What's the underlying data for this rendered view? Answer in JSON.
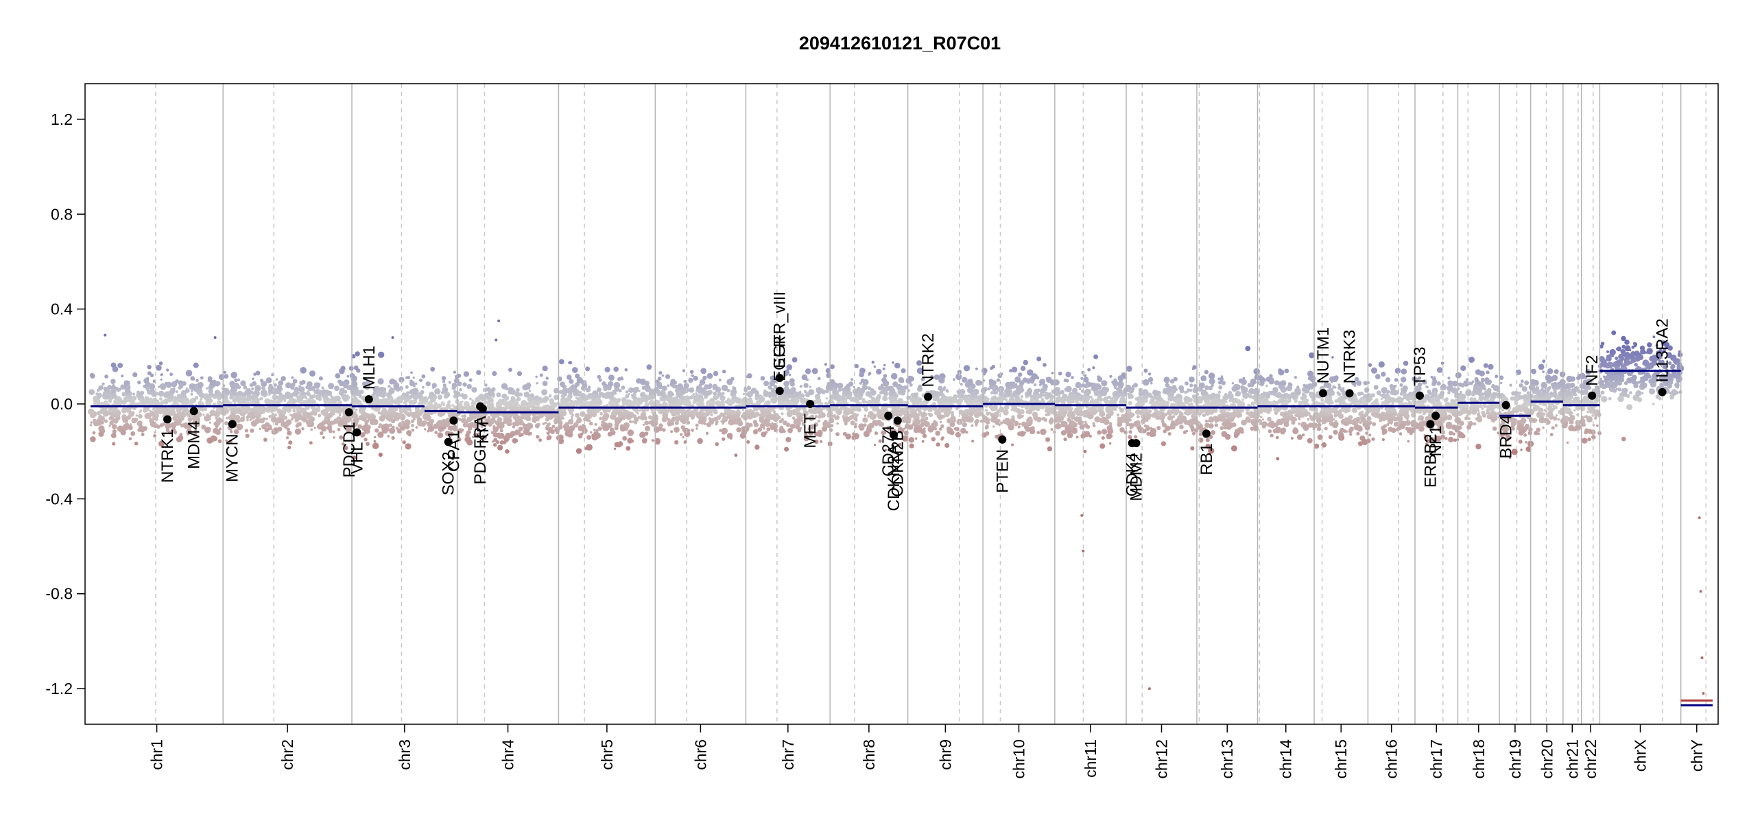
{
  "chart_data": {
    "type": "scatter",
    "title": "209412610121_R07C01",
    "xlabel": "",
    "ylabel": "",
    "ylim": [
      -1.35,
      1.35
    ],
    "yticks": [
      -1.2,
      -0.8,
      -0.4,
      0.0,
      0.4,
      0.8,
      1.2
    ],
    "ytick_labels": [
      "-1.2",
      "-0.8",
      "-0.4",
      "0.0",
      "0.4",
      "0.8",
      "1.2"
    ],
    "grid": false,
    "colors": {
      "high": "#6f70b3",
      "neutral": "#cfcfcf",
      "low": "#b06e70",
      "segment": "#000080",
      "gene_point": "#000000",
      "solid_boundary": "#b5b5b5",
      "dashed_centromere": "#c8c8c8"
    },
    "chromosomes": [
      {
        "name": "chr1",
        "start": 0,
        "end": 1000,
        "centromere": 492
      },
      {
        "name": "chr2",
        "start": 1000,
        "end": 1972,
        "centromere": 1383
      },
      {
        "name": "chr3",
        "start": 1972,
        "end": 2767,
        "centromere": 2347
      },
      {
        "name": "chr4",
        "start": 2767,
        "end": 3532,
        "centromere": 2973
      },
      {
        "name": "chr5",
        "start": 3532,
        "end": 4261,
        "centromere": 3727
      },
      {
        "name": "chr6",
        "start": 4261,
        "end": 4945,
        "centromere": 4499
      },
      {
        "name": "chr7",
        "start": 4945,
        "end": 5580,
        "centromere": 5180
      },
      {
        "name": "chr8",
        "start": 5580,
        "end": 6167,
        "centromere": 5765
      },
      {
        "name": "chr9",
        "start": 6167,
        "end": 6734,
        "centromere": 6556
      },
      {
        "name": "chr10",
        "start": 6734,
        "end": 7276,
        "centromere": 6865
      },
      {
        "name": "chr11",
        "start": 7276,
        "end": 7815,
        "centromere": 7491
      },
      {
        "name": "chr12",
        "start": 7815,
        "end": 8348,
        "centromere": 7935
      },
      {
        "name": "chr13",
        "start": 8348,
        "end": 8806,
        "centromere": 8366
      },
      {
        "name": "chr14",
        "start": 8806,
        "end": 9233,
        "centromere": 8821
      },
      {
        "name": "chr15",
        "start": 9233,
        "end": 9639,
        "centromere": 9293
      },
      {
        "name": "chr16",
        "start": 9639,
        "end": 9994,
        "centromere": 9870
      },
      {
        "name": "chr17",
        "start": 9994,
        "end": 10317,
        "centromere": 10205
      },
      {
        "name": "chr18",
        "start": 10317,
        "end": 10631,
        "centromere": 10394
      },
      {
        "name": "chr19",
        "start": 10631,
        "end": 10867,
        "centromere": 10762
      },
      {
        "name": "chr20",
        "start": 10867,
        "end": 11111,
        "centromere": 10985
      },
      {
        "name": "chr21",
        "start": 11111,
        "end": 11250,
        "centromere": 11225
      },
      {
        "name": "chr22",
        "start": 11250,
        "end": 11388,
        "centromere": 11338
      },
      {
        "name": "chrX",
        "start": 11388,
        "end": 12000,
        "centromere": 11860
      },
      {
        "name": "chrY",
        "start": 12000,
        "end": 12240,
        "centromere": 12190
      }
    ],
    "segments": [
      {
        "x0": 0,
        "x1": 1000,
        "y": -0.01
      },
      {
        "x0": 1000,
        "x1": 1972,
        "y": -0.005
      },
      {
        "x0": 1972,
        "x1": 2520,
        "y": -0.01
      },
      {
        "x0": 2520,
        "x1": 2767,
        "y": -0.03
      },
      {
        "x0": 2767,
        "x1": 3532,
        "y": -0.035
      },
      {
        "x0": 3532,
        "x1": 4261,
        "y": -0.015
      },
      {
        "x0": 4261,
        "x1": 4945,
        "y": -0.015
      },
      {
        "x0": 4945,
        "x1": 5580,
        "y": -0.01
      },
      {
        "x0": 5580,
        "x1": 6167,
        "y": -0.005
      },
      {
        "x0": 6167,
        "x1": 6734,
        "y": -0.01
      },
      {
        "x0": 6734,
        "x1": 7276,
        "y": 0.0
      },
      {
        "x0": 7276,
        "x1": 7815,
        "y": -0.005
      },
      {
        "x0": 7815,
        "x1": 8348,
        "y": -0.015
      },
      {
        "x0": 8348,
        "x1": 8806,
        "y": -0.015
      },
      {
        "x0": 8806,
        "x1": 9233,
        "y": -0.01
      },
      {
        "x0": 9233,
        "x1": 9639,
        "y": -0.01
      },
      {
        "x0": 9639,
        "x1": 9994,
        "y": -0.01
      },
      {
        "x0": 9994,
        "x1": 10317,
        "y": -0.015
      },
      {
        "x0": 10317,
        "x1": 10631,
        "y": 0.005
      },
      {
        "x0": 10631,
        "x1": 10867,
        "y": -0.05
      },
      {
        "x0": 10867,
        "x1": 11111,
        "y": 0.01
      },
      {
        "x0": 11111,
        "x1": 11250,
        "y": -0.005
      },
      {
        "x0": 11250,
        "x1": 11388,
        "y": -0.005
      },
      {
        "x0": 11388,
        "x1": 12000,
        "y": 0.14
      },
      {
        "x0": 12000,
        "x1": 12240,
        "y": -1.27
      },
      {
        "x0": 12000,
        "x1": 12240,
        "y": -1.25
      }
    ],
    "genes": [
      {
        "name": "NTRK1",
        "x": 580,
        "y": -0.065,
        "label_side": "below"
      },
      {
        "name": "MDM4",
        "x": 780,
        "y": -0.03,
        "label_side": "below"
      },
      {
        "name": "MYCN",
        "x": 1070,
        "y": -0.085,
        "label_side": "below"
      },
      {
        "name": "PDCD1",
        "x": 1950,
        "y": -0.035,
        "label_side": "below"
      },
      {
        "name": "VHL",
        "x": 2010,
        "y": -0.12,
        "label_side": "below"
      },
      {
        "name": "MLH1",
        "x": 2100,
        "y": 0.02,
        "label_side": "above"
      },
      {
        "name": "SOX2",
        "x": 2700,
        "y": -0.16,
        "label_side": "below"
      },
      {
        "name": "CPA1",
        "x": 2740,
        "y": -0.07,
        "label_side": "below"
      },
      {
        "name": "PDGFRA",
        "x": 2940,
        "y": -0.01,
        "label_side": "below"
      },
      {
        "name": "KIT",
        "x": 2960,
        "y": -0.02,
        "label_side": "below"
      },
      {
        "name": "EGFR",
        "x": 5200,
        "y": 0.055,
        "label_side": "above"
      },
      {
        "name": "EGFR_vIII",
        "x": 5200,
        "y": 0.11,
        "label_side": "above"
      },
      {
        "name": "MET",
        "x": 5430,
        "y": 0.0,
        "label_side": "below"
      },
      {
        "name": "CD274",
        "x": 6020,
        "y": -0.05,
        "label_side": "below"
      },
      {
        "name": "CDKN2A",
        "x": 6060,
        "y": -0.13,
        "label_side": "below"
      },
      {
        "name": "CDKN2B",
        "x": 6090,
        "y": -0.07,
        "label_side": "below"
      },
      {
        "name": "NTRK2",
        "x": 6320,
        "y": 0.03,
        "label_side": "above"
      },
      {
        "name": "PTEN",
        "x": 6880,
        "y": -0.15,
        "label_side": "below"
      },
      {
        "name": "CDK4",
        "x": 7860,
        "y": -0.165,
        "label_side": "below"
      },
      {
        "name": "MDM2",
        "x": 7890,
        "y": -0.165,
        "label_side": "below"
      },
      {
        "name": "RB1",
        "x": 8420,
        "y": -0.125,
        "label_side": "below"
      },
      {
        "name": "NUTM1",
        "x": 9300,
        "y": 0.045,
        "label_side": "above"
      },
      {
        "name": "NTRK3",
        "x": 9500,
        "y": 0.045,
        "label_side": "above"
      },
      {
        "name": "TP53",
        "x": 10030,
        "y": 0.035,
        "label_side": "above"
      },
      {
        "name": "NF1",
        "x": 10150,
        "y": -0.05,
        "label_side": "below"
      },
      {
        "name": "ERBB2",
        "x": 10110,
        "y": -0.085,
        "label_side": "below"
      },
      {
        "name": "BRD4",
        "x": 10680,
        "y": -0.005,
        "label_side": "below"
      },
      {
        "name": "NF2",
        "x": 11330,
        "y": 0.035,
        "label_side": "above"
      },
      {
        "name": "IL13RA2",
        "x": 11860,
        "y": 0.05,
        "label_side": "above"
      }
    ],
    "outliers": [
      {
        "x": 110,
        "y": 0.29
      },
      {
        "x": 940,
        "y": 0.28
      },
      {
        "x": 2280,
        "y": 0.28
      },
      {
        "x": 3080,
        "y": 0.35
      },
      {
        "x": 3060,
        "y": 0.27
      },
      {
        "x": 7480,
        "y": -0.47
      },
      {
        "x": 7490,
        "y": -0.62
      },
      {
        "x": 7990,
        "y": -1.2
      },
      {
        "x": 12140,
        "y": -0.48
      },
      {
        "x": 12150,
        "y": -0.79
      },
      {
        "x": 12160,
        "y": -1.07
      },
      {
        "x": 12170,
        "y": -1.22
      }
    ]
  }
}
